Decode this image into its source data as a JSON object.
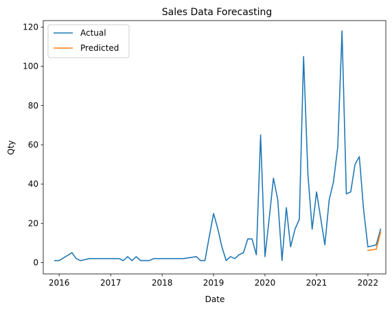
{
  "chart_data": {
    "type": "line",
    "title": "Sales Data Forecasting",
    "xlabel": "Date",
    "ylabel": "Qty",
    "x_ticks": [
      "2016",
      "2017",
      "2018",
      "2019",
      "2020",
      "2021",
      "2022"
    ],
    "y_ticks": [
      "0",
      "20",
      "40",
      "60",
      "80",
      "100",
      "120"
    ],
    "xlim": [
      "2015-09-10",
      "2022-05-08"
    ],
    "ylim": [
      -5.8,
      123.3
    ],
    "grid": false,
    "legend_position": "upper-left",
    "series": [
      {
        "name": "Actual",
        "color": "#1f77b4",
        "points": [
          [
            "2015-12-01",
            1
          ],
          [
            "2016-01-01",
            1
          ],
          [
            "2016-04-01",
            5
          ],
          [
            "2016-05-01",
            2
          ],
          [
            "2016-06-01",
            1
          ],
          [
            "2016-08-01",
            2
          ],
          [
            "2016-09-01",
            2
          ],
          [
            "2016-11-01",
            2
          ],
          [
            "2016-12-01",
            2
          ],
          [
            "2017-01-01",
            2
          ],
          [
            "2017-03-01",
            2
          ],
          [
            "2017-04-01",
            1
          ],
          [
            "2017-05-01",
            3
          ],
          [
            "2017-06-01",
            1
          ],
          [
            "2017-07-01",
            3
          ],
          [
            "2017-08-01",
            1
          ],
          [
            "2017-10-01",
            1
          ],
          [
            "2017-11-01",
            2
          ],
          [
            "2017-12-01",
            2
          ],
          [
            "2018-03-01",
            2
          ],
          [
            "2018-06-01",
            2
          ],
          [
            "2018-09-01",
            3
          ],
          [
            "2018-10-01",
            1
          ],
          [
            "2018-11-01",
            1
          ],
          [
            "2018-12-01",
            13
          ],
          [
            "2019-01-01",
            25
          ],
          [
            "2019-02-01",
            17
          ],
          [
            "2019-03-01",
            8
          ],
          [
            "2019-04-01",
            1
          ],
          [
            "2019-05-01",
            3
          ],
          [
            "2019-06-01",
            2
          ],
          [
            "2019-07-01",
            4
          ],
          [
            "2019-08-01",
            5
          ],
          [
            "2019-09-01",
            12
          ],
          [
            "2019-10-01",
            12
          ],
          [
            "2019-11-01",
            4
          ],
          [
            "2019-12-01",
            65
          ],
          [
            "2020-01-01",
            3
          ],
          [
            "2020-02-01",
            23
          ],
          [
            "2020-03-01",
            43
          ],
          [
            "2020-04-01",
            32
          ],
          [
            "2020-05-01",
            1
          ],
          [
            "2020-06-01",
            28
          ],
          [
            "2020-07-01",
            8
          ],
          [
            "2020-08-01",
            17
          ],
          [
            "2020-09-01",
            22
          ],
          [
            "2020-10-01",
            105
          ],
          [
            "2020-11-01",
            45
          ],
          [
            "2020-12-01",
            17
          ],
          [
            "2021-01-01",
            36
          ],
          [
            "2021-02-01",
            22
          ],
          [
            "2021-03-01",
            9
          ],
          [
            "2021-04-01",
            32
          ],
          [
            "2021-05-01",
            41
          ],
          [
            "2021-06-01",
            59
          ],
          [
            "2021-07-01",
            118
          ],
          [
            "2021-08-01",
            35
          ],
          [
            "2021-09-01",
            36
          ],
          [
            "2021-10-01",
            50
          ],
          [
            "2021-11-01",
            54
          ],
          [
            "2021-12-01",
            27
          ],
          [
            "2022-01-01",
            8
          ],
          [
            "2022-03-01",
            9
          ],
          [
            "2022-04-01",
            17
          ]
        ]
      },
      {
        "name": "Predicted",
        "color": "#ff7f0e",
        "points": [
          [
            "2022-01-01",
            6.2
          ],
          [
            "2022-02-01",
            6.5
          ],
          [
            "2022-03-01",
            6.8
          ],
          [
            "2022-04-01",
            15.5
          ]
        ]
      }
    ]
  }
}
